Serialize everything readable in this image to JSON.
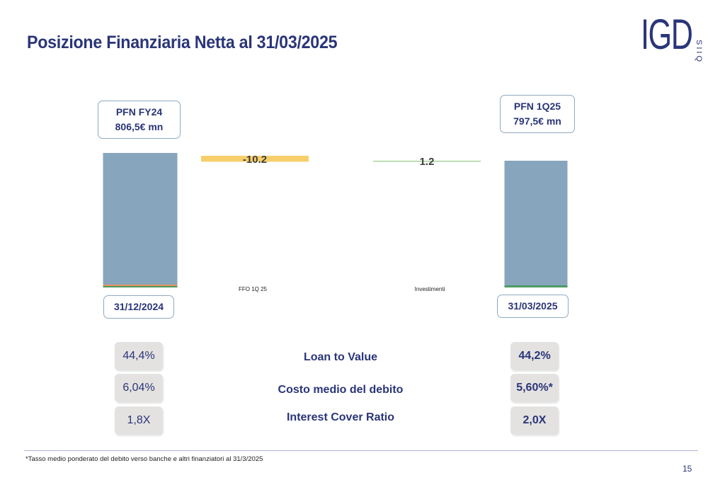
{
  "title": "Posizione Finanziaria Netta al 31/03/2025",
  "logo": {
    "main": "IGD",
    "sub": "SIIQ"
  },
  "chart_data": {
    "type": "bar",
    "subtype": "waterfall",
    "categories": [
      "31/12/2024",
      "FFO 1Q 25",
      "Investimenti",
      "31/03/2025"
    ],
    "values": [
      806.5,
      -10.2,
      1.2,
      797.5
    ],
    "data_labels": [
      "",
      "-10.2",
      "1.2",
      ""
    ],
    "colors": {
      "total": "#87a6bd",
      "negative": "#f7cf6a",
      "positive": "#a9d49a",
      "base_line_orange": "#e8935a",
      "base_line_green": "#4d9b63"
    }
  },
  "callouts": {
    "start": {
      "line1": "PFN FY24",
      "line2": "806,5€ mn"
    },
    "end": {
      "line1": "PFN 1Q25",
      "line2": "797,5€ mn"
    }
  },
  "kpis": {
    "labels": [
      "Loan to Value",
      "Costo medio del debito",
      "Interest Cover Ratio"
    ],
    "fy24": [
      "44,4%",
      "6,04%",
      "1,8X"
    ],
    "q125": [
      "44,2%",
      "5,60%*",
      "2,0X"
    ]
  },
  "footnote": "*Tasso medio ponderato  del debito verso banche e altri finanziatori al 31/3/2025",
  "page_number": "15"
}
